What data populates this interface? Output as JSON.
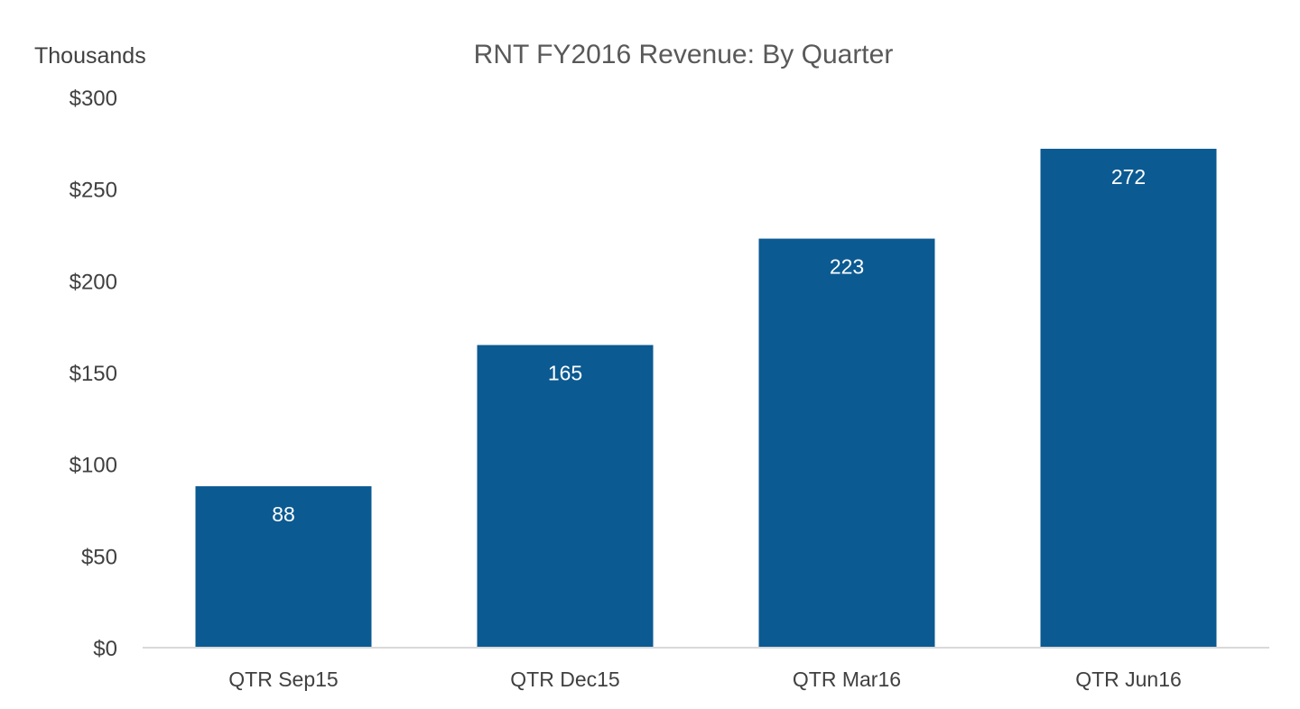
{
  "chart_data": {
    "type": "bar",
    "title": "RNT FY2016 Revenue: By Quarter",
    "unit_label": "Thousands",
    "categories": [
      "QTR Sep15",
      "QTR Dec15",
      "QTR Mar16",
      "QTR Jun16"
    ],
    "values": [
      88,
      165,
      223,
      272
    ],
    "data_labels": [
      "88",
      "165",
      "223",
      "272"
    ],
    "y_ticks": [
      0,
      50,
      100,
      150,
      200,
      250,
      300
    ],
    "y_tick_labels": [
      "$0",
      "$50",
      "$100",
      "$150",
      "$200",
      "$250",
      "$300"
    ],
    "ylim": [
      0,
      300
    ],
    "grid": false,
    "legend": "none",
    "bar_color": "#0B5A92"
  }
}
